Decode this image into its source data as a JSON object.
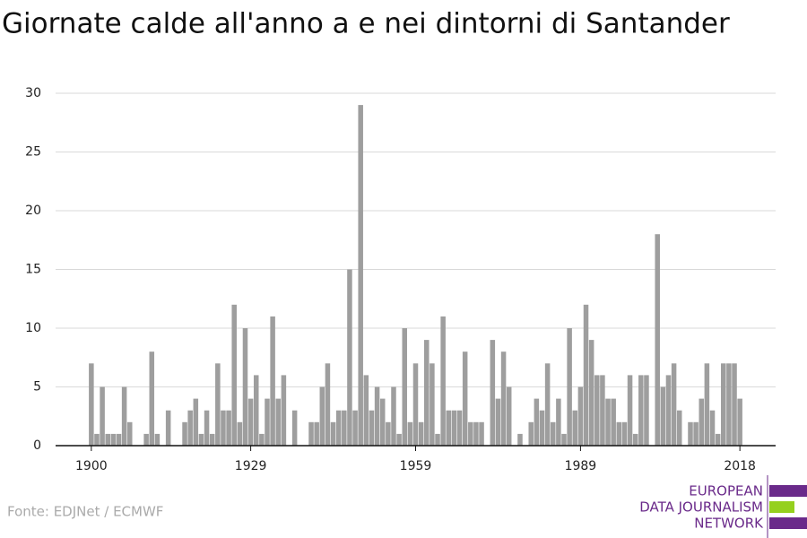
{
  "chart_data": {
    "type": "bar",
    "title": "Giornate calde all'anno a e nei dintorni di Santander",
    "source": "Fonte: EDJNet / ECMWF",
    "logo": [
      "EUROPEAN",
      "DATA JOURNALISM",
      "NETWORK"
    ],
    "color": "#9e9e9e",
    "x": [
      1900,
      1901,
      1902,
      1903,
      1904,
      1905,
      1906,
      1907,
      1908,
      1909,
      1910,
      1911,
      1912,
      1913,
      1914,
      1915,
      1916,
      1917,
      1918,
      1919,
      1920,
      1921,
      1922,
      1923,
      1924,
      1925,
      1926,
      1927,
      1928,
      1929,
      1930,
      1931,
      1932,
      1933,
      1934,
      1935,
      1936,
      1937,
      1938,
      1939,
      1940,
      1941,
      1942,
      1943,
      1944,
      1945,
      1946,
      1947,
      1948,
      1949,
      1950,
      1951,
      1952,
      1953,
      1954,
      1955,
      1956,
      1957,
      1958,
      1959,
      1960,
      1961,
      1962,
      1963,
      1964,
      1965,
      1966,
      1967,
      1968,
      1969,
      1970,
      1971,
      1972,
      1973,
      1974,
      1975,
      1976,
      1977,
      1978,
      1979,
      1980,
      1981,
      1982,
      1983,
      1984,
      1985,
      1986,
      1987,
      1988,
      1989,
      1990,
      1991,
      1992,
      1993,
      1994,
      1995,
      1996,
      1997,
      1998,
      1999,
      2000,
      2001,
      2002,
      2003,
      2004,
      2005,
      2006,
      2007,
      2008,
      2009,
      2010,
      2011,
      2012,
      2013,
      2014,
      2015,
      2016,
      2017,
      2018
    ],
    "values": [
      7,
      1,
      5,
      1,
      1,
      1,
      5,
      2,
      0,
      0,
      1,
      8,
      1,
      0,
      3,
      0,
      0,
      2,
      3,
      4,
      1,
      3,
      1,
      7,
      3,
      3,
      12,
      2,
      10,
      4,
      6,
      1,
      4,
      11,
      4,
      6,
      0,
      3,
      0,
      0,
      2,
      2,
      5,
      7,
      2,
      3,
      3,
      15,
      3,
      29,
      6,
      3,
      5,
      4,
      2,
      5,
      1,
      10,
      2,
      7,
      2,
      9,
      7,
      1,
      11,
      3,
      3,
      3,
      8,
      2,
      2,
      2,
      0,
      9,
      4,
      8,
      5,
      0,
      1,
      0,
      2,
      4,
      3,
      7,
      2,
      4,
      1,
      10,
      3,
      5,
      12,
      9,
      6,
      6,
      4,
      4,
      2,
      2,
      6,
      1,
      6,
      6,
      0,
      18,
      5,
      6,
      7,
      3,
      0,
      2,
      2,
      4,
      7,
      3,
      1,
      7,
      7,
      7,
      4
    ],
    "xlim": [
      1893.5,
      2024.5
    ],
    "xticks": [
      1900,
      1929,
      1959,
      1989,
      2018
    ],
    "ylim": [
      0,
      30
    ],
    "yticks": [
      0,
      5,
      10,
      15,
      20,
      25,
      30
    ],
    "grid": true
  }
}
